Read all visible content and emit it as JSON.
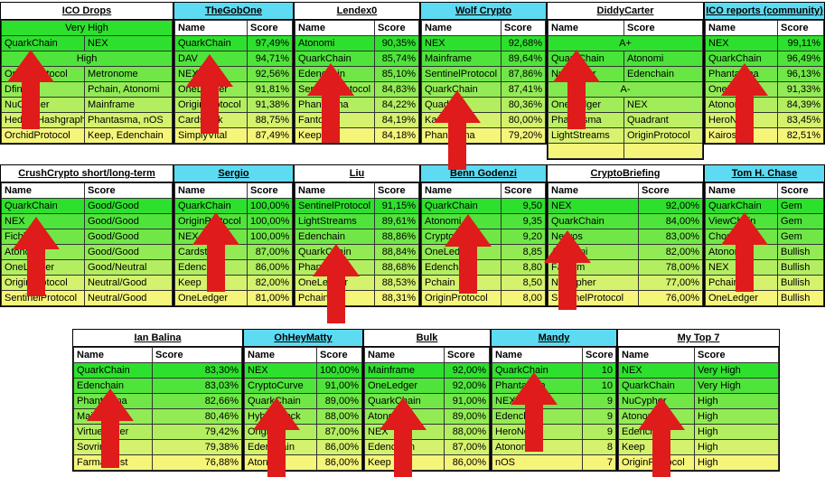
{
  "row1": [
    {
      "title": "ICO Drops",
      "cyan": false,
      "rows": [
        [
          "QuarkChain",
          "NEX"
        ],
        [
          "High",
          ""
        ],
        [
          "OriginProtocol",
          "Metronome"
        ],
        [
          "Dfinity",
          "Pchain, Atonomi"
        ],
        [
          "NuCypher",
          "Mainframe"
        ],
        [
          "HederaHashgraph",
          "Phantasma, nOS"
        ],
        [
          "OrchidProtocol",
          "Keep, Edenchain"
        ]
      ]
    },
    {
      "title": "TheGobOne",
      "cyan": true,
      "rows": [
        [
          "QuarkChain",
          "97,49%"
        ],
        [
          "DAV",
          "94,71%"
        ],
        [
          "NEX",
          "92,56%"
        ],
        [
          "OneLedger",
          "91,81%"
        ],
        [
          "OriginProtocol",
          "91,38%"
        ],
        [
          "Cardstack",
          "88,75%"
        ],
        [
          "SimplyVital",
          "87,49%"
        ]
      ]
    },
    {
      "title": "Lendex0",
      "cyan": false,
      "rows": [
        [
          "Atonomi",
          "90,35%"
        ],
        [
          "QuarkChain",
          "85,74%"
        ],
        [
          "Edenchain",
          "85,10%"
        ],
        [
          "SentinelProtocol",
          "84,83%"
        ],
        [
          "Phantasma",
          "84,22%"
        ],
        [
          "Fantom",
          "84,19%"
        ],
        [
          "Keep",
          "84,18%"
        ]
      ]
    },
    {
      "title": "Wolf Crypto",
      "cyan": true,
      "rows": [
        [
          "NEX",
          "92,68%"
        ],
        [
          "Mainframe",
          "89,64%"
        ],
        [
          "SentinelProtocol",
          "87,86%"
        ],
        [
          "QuarkChain",
          "87,41%"
        ],
        [
          "Quadrant",
          "80,36%"
        ],
        [
          "Kambria",
          "80,00%"
        ],
        [
          "Phantasma",
          "79,20%"
        ]
      ]
    },
    {
      "title": "DiddyCarter",
      "cyan": false,
      "rows": [
        [
          "A+",
          ""
        ],
        [
          "QuarkChain",
          "Atonomi"
        ],
        [
          "NuCypher",
          "Edenchain"
        ],
        [
          "A-",
          ""
        ],
        [
          "OneLedger",
          "NEX"
        ],
        [
          "Phantasma",
          "Quadrant"
        ],
        [
          "LightStreams",
          "OriginProtocol"
        ],
        [
          "",
          ""
        ]
      ]
    },
    {
      "title": "ICO reports (community)",
      "cyan": true,
      "rows": [
        [
          "NEX",
          "99,11%"
        ],
        [
          "QuarkChain",
          "96,49%"
        ],
        [
          "Phantasma",
          "96,13%"
        ],
        [
          "OneLedger",
          "91,33%"
        ],
        [
          "Atonomi",
          "84,39%"
        ],
        [
          "HeroNode",
          "83,45%"
        ],
        [
          "Kairos",
          "82,51%"
        ]
      ]
    }
  ],
  "row2": [
    {
      "title": "CrushCrypto short/long-term",
      "cyan": false,
      "rows": [
        [
          "QuarkChain",
          "Good/Good"
        ],
        [
          "NEX",
          "Good/Good"
        ],
        [
          "Fichblock",
          "Good/Good"
        ],
        [
          "Atonomi",
          "Good/Good"
        ],
        [
          "OneLedger",
          "Good/Neutral"
        ],
        [
          "OriginProtocol",
          "Neutral/Good"
        ],
        [
          "SentinelProtocol",
          "Neutral/Good"
        ]
      ]
    },
    {
      "title": "Sergio",
      "cyan": true,
      "rows": [
        [
          "QuarkChain",
          "100,00%"
        ],
        [
          "OriginProtocol",
          "100,00%"
        ],
        [
          "NEX",
          "100,00%"
        ],
        [
          "Cardstack",
          "87,00%"
        ],
        [
          "Edenchain",
          "86,00%"
        ],
        [
          "Keep",
          "82,00%"
        ],
        [
          "OneLedger",
          "81,00%"
        ]
      ]
    },
    {
      "title": "Liu",
      "cyan": false,
      "rows": [
        [
          "SentinelProtocol",
          "91,15%"
        ],
        [
          "LightStreams",
          "89,61%"
        ],
        [
          "Edenchain",
          "88,86%"
        ],
        [
          "QuarkChain",
          "88,84%"
        ],
        [
          "Phantasma",
          "88,68%"
        ],
        [
          "OneLedger",
          "88,53%"
        ],
        [
          "Pchain",
          "88,31%"
        ]
      ]
    },
    {
      "title": "Benn Godenzi",
      "cyan": true,
      "rows": [
        [
          "QuarkChain",
          "9,50"
        ],
        [
          "Atonomi",
          "9,35"
        ],
        [
          "Crypto",
          "9,20"
        ],
        [
          "OneLedger",
          "8,85"
        ],
        [
          "Edenchain",
          "8,80"
        ],
        [
          "Pchain",
          "8,50"
        ],
        [
          "OriginProtocol",
          "8,00"
        ]
      ]
    },
    {
      "title": "CryptoBriefing",
      "cyan": false,
      "rows": [
        [
          "NEX",
          "92,00%"
        ],
        [
          "QuarkChain",
          "84,00%"
        ],
        [
          "Nervos",
          "83,00%"
        ],
        [
          "Atonomi",
          "82,00%"
        ],
        [
          "Fantom",
          "78,00%"
        ],
        [
          "NuCypher",
          "77,00%"
        ],
        [
          "SentinelProtocol",
          "76,00%"
        ]
      ]
    },
    {
      "title": "Tom H. Chase",
      "cyan": true,
      "rows": [
        [
          "QuarkChain",
          "Gem"
        ],
        [
          "ViewChain",
          "Gem"
        ],
        [
          "Chosen",
          "Gem"
        ],
        [
          "Atonomi",
          "Bullish"
        ],
        [
          "NEX",
          "Bullish"
        ],
        [
          "Pchain",
          "Bullish"
        ],
        [
          "OneLedger",
          "Bullish"
        ]
      ]
    }
  ],
  "row3": [
    {
      "title": "Ian Balina",
      "cyan": false,
      "rows": [
        [
          "QuarkChain",
          "83,30%"
        ],
        [
          "Edenchain",
          "83,03%"
        ],
        [
          "Phantasma",
          "82,66%"
        ],
        [
          "Mainframe",
          "80,46%"
        ],
        [
          "VirtuePoker",
          "79,42%"
        ],
        [
          "Sovrin",
          "79,38%"
        ],
        [
          "FarmaTrust",
          "76,88%"
        ]
      ]
    },
    {
      "title": "OhHeyMatty",
      "cyan": true,
      "rows": [
        [
          "NEX",
          "100,00%"
        ],
        [
          "CryptoCurve",
          "91,00%"
        ],
        [
          "QuarkChain",
          "89,00%"
        ],
        [
          "HybridBlock",
          "88,00%"
        ],
        [
          "Origin",
          "87,00%"
        ],
        [
          "Edenchain",
          "86,00%"
        ],
        [
          "Atonomi",
          "86,00%"
        ]
      ]
    },
    {
      "title": "Bulk",
      "cyan": false,
      "rows": [
        [
          "Mainframe",
          "92,00%"
        ],
        [
          "OneLedger",
          "92,00%"
        ],
        [
          "QuarkChain",
          "91,00%"
        ],
        [
          "Atonomi",
          "89,00%"
        ],
        [
          "NEX",
          "88,00%"
        ],
        [
          "Edenchain",
          "87,00%"
        ],
        [
          "Keep",
          "86,00%"
        ]
      ]
    },
    {
      "title": "Mandy",
      "cyan": true,
      "rows": [
        [
          "QuarkChain",
          "10"
        ],
        [
          "Phantasma",
          "10"
        ],
        [
          "NEX",
          "9"
        ],
        [
          "Edenchain",
          "9"
        ],
        [
          "HeroNode",
          "9"
        ],
        [
          "Atonomi",
          "8"
        ],
        [
          "nOS",
          "7"
        ]
      ]
    },
    {
      "title": "My Top 7",
      "cyan": false,
      "rows": [
        [
          "NEX",
          "Very High"
        ],
        [
          "QuarkChain",
          "Very High"
        ],
        [
          "NuCypher",
          "High"
        ],
        [
          "Atonomi",
          "High"
        ],
        [
          "Edenchain",
          "High"
        ],
        [
          "Keep",
          "High"
        ],
        [
          "OriginProtocol",
          "High"
        ]
      ]
    }
  ],
  "headers": {
    "name": "Name",
    "score": "Score"
  },
  "icodrops_header": "Very High",
  "colors": {
    "cyan": "#5ddbf2",
    "green": "#2ee02e",
    "yellow": "#f5f57a",
    "arrow": "#e01b1b"
  }
}
